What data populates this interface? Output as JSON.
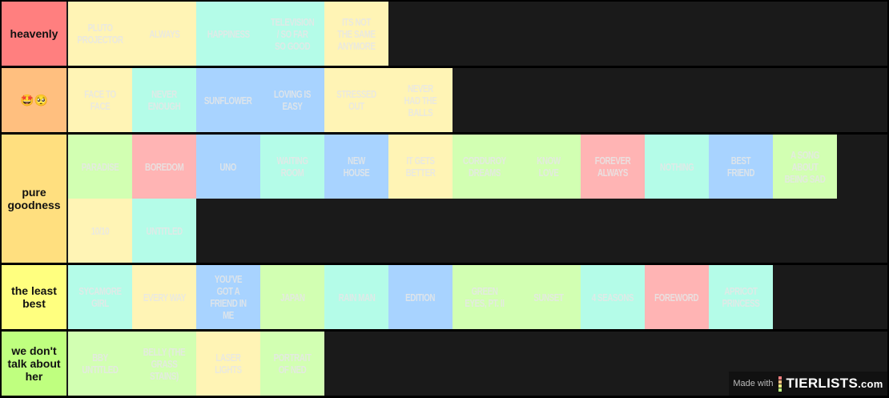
{
  "colors": {
    "yellow": "#fff4b5",
    "mint": "#b4fce8",
    "blue": "#a8d3ff",
    "green": "#d2ffb2",
    "pink": "#ffb4b4"
  },
  "tiers": [
    {
      "label": "heavenly",
      "color": "#ff7f7f",
      "items": [
        {
          "text": "PLUTO PROJECTOR",
          "c": "yellow"
        },
        {
          "text": "ALWAYS",
          "c": "yellow"
        },
        {
          "text": "HAPPINESS",
          "c": "mint"
        },
        {
          "text": "TELEVISION / SO FAR SO GOOD",
          "c": "mint"
        },
        {
          "text": "ITS NOT THE SAME ANYMORE",
          "c": "yellow"
        }
      ]
    },
    {
      "label": "🤩🥺",
      "color": "#ffbf7f",
      "items": [
        {
          "text": "FACE TO FACE",
          "c": "yellow"
        },
        {
          "text": "NEVER ENOUGH",
          "c": "mint"
        },
        {
          "text": "SUNFLOWER",
          "c": "blue"
        },
        {
          "text": "LOVING IS EASY",
          "c": "blue"
        },
        {
          "text": "STRESSED OUT",
          "c": "yellow"
        },
        {
          "text": "NEVER HAD THE BALLS",
          "c": "yellow"
        }
      ]
    },
    {
      "label": "pure goodness",
      "color": "#ffdf7f",
      "items": [
        {
          "text": "PARADISE",
          "c": "green"
        },
        {
          "text": "BOREDOM",
          "c": "pink"
        },
        {
          "text": "UNO",
          "c": "blue"
        },
        {
          "text": "WAITING ROOM",
          "c": "mint"
        },
        {
          "text": "NEW HOUSE",
          "c": "blue"
        },
        {
          "text": "IT GETS BETTER",
          "c": "yellow"
        },
        {
          "text": "CORDUROY DREAMS",
          "c": "green"
        },
        {
          "text": "KNOW LOVE",
          "c": "green"
        },
        {
          "text": "FOREVER ALWAYS",
          "c": "pink"
        },
        {
          "text": "NOTHING",
          "c": "mint"
        },
        {
          "text": "BEST FRIEND",
          "c": "blue"
        },
        {
          "text": "A SONG ABOUT BEING SAD",
          "c": "green"
        },
        {
          "text": "10/10",
          "c": "yellow"
        },
        {
          "text": "UNTITLED",
          "c": "mint"
        }
      ]
    },
    {
      "label": "the least best",
      "color": "#ffff7f",
      "items": [
        {
          "text": "SYCAMORE GIRL",
          "c": "mint"
        },
        {
          "text": "EVERY WAY",
          "c": "yellow"
        },
        {
          "text": "YOU'VE GOT A FRIEND IN ME",
          "c": "blue"
        },
        {
          "text": "JAPAN",
          "c": "green"
        },
        {
          "text": "RAIN MAN",
          "c": "mint"
        },
        {
          "text": "EDITION",
          "c": "blue"
        },
        {
          "text": "GREEN EYES, PT. II",
          "c": "green"
        },
        {
          "text": "SUNSET",
          "c": "green"
        },
        {
          "text": "4 SEASONS",
          "c": "mint"
        },
        {
          "text": "FOREWORD",
          "c": "pink"
        },
        {
          "text": "APRICOT PRINCESS",
          "c": "mint"
        }
      ]
    },
    {
      "label": "we don't talk about her",
      "color": "#bfff7f",
      "items": [
        {
          "text": "BBY UNTITLED",
          "c": "green"
        },
        {
          "text": "BELLY (THE GRASS STAINS)",
          "c": "green"
        },
        {
          "text": "LASER LIGHTS",
          "c": "yellow"
        },
        {
          "text": "PORTRAIT OF NED",
          "c": "green"
        }
      ]
    }
  ],
  "watermark": {
    "made_with": "Made with",
    "brand": "TIERLISTS",
    "tld": ".com",
    "bar_colors": [
      "#ff7f7f",
      "#ffbf7f",
      "#ffff7f",
      "#bfff7f"
    ]
  }
}
